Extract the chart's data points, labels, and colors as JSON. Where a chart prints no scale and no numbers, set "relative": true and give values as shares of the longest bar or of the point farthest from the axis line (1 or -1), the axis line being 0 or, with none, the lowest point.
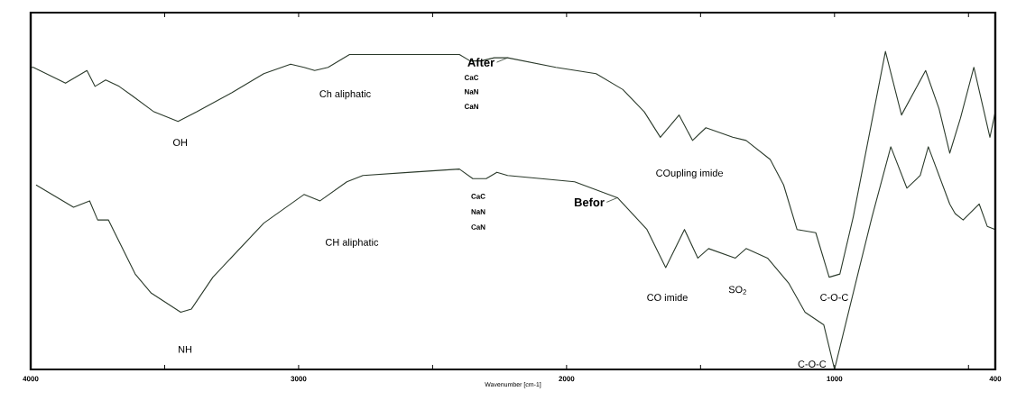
{
  "chart_data": {
    "type": "line",
    "relative": true,
    "xlabel": "Wavenumber [cm-1]",
    "xlim": [
      4000,
      400
    ],
    "xticks": [
      4000,
      {
        "value": 3500,
        "label": null
      },
      3000,
      {
        "value": 2500,
        "label": null
      },
      2000,
      {
        "value": 1500,
        "label": null
      },
      1000,
      {
        "value": 500,
        "label": null
      },
      400
    ],
    "tick_labels": "x",
    "legend": "top",
    "series": [
      {
        "name": "After",
        "color": "#2b3a2b",
        "x": [
          4000,
          3990,
          3870,
          3790,
          3760,
          3720,
          3670,
          3620,
          3540,
          3450,
          3380,
          3250,
          3130,
          3030,
          2980,
          2940,
          2890,
          2810,
          2580,
          2400,
          2360,
          2320,
          2270,
          2220,
          2040,
          1890,
          1790,
          1710,
          1650,
          1580,
          1530,
          1480,
          1380,
          1330,
          1240,
          1190,
          1140,
          1070,
          1020,
          980,
          930,
          810,
          750,
          660,
          610,
          570,
          530,
          480,
          420,
          400
        ],
        "values": [
          0.95,
          0.95,
          0.9,
          0.94,
          0.89,
          0.91,
          0.89,
          0.86,
          0.81,
          0.78,
          0.81,
          0.87,
          0.93,
          0.96,
          0.95,
          0.94,
          0.95,
          0.99,
          0.99,
          0.99,
          0.97,
          0.97,
          0.98,
          0.98,
          0.95,
          0.93,
          0.88,
          0.81,
          0.73,
          0.8,
          0.72,
          0.76,
          0.73,
          0.72,
          0.66,
          0.58,
          0.44,
          0.43,
          0.29,
          0.3,
          0.48,
          1.0,
          0.8,
          0.94,
          0.82,
          0.68,
          0.79,
          0.95,
          0.73,
          0.81
        ]
      },
      {
        "name": "Befor",
        "color": "#2b3a2b",
        "x": [
          3980,
          3840,
          3780,
          3750,
          3710,
          3610,
          3550,
          3440,
          3400,
          3320,
          3130,
          2980,
          2920,
          2820,
          2760,
          2580,
          2400,
          2350,
          2300,
          2260,
          2220,
          1970,
          1810,
          1700,
          1630,
          1560,
          1510,
          1470,
          1370,
          1330,
          1250,
          1170,
          1110,
          1040,
          1000,
          910,
          860,
          790,
          730,
          680,
          650,
          570,
          550,
          520,
          460,
          430,
          400
        ],
        "values": [
          0.58,
          0.51,
          0.53,
          0.47,
          0.47,
          0.3,
          0.24,
          0.18,
          0.19,
          0.29,
          0.46,
          0.55,
          0.53,
          0.59,
          0.61,
          0.62,
          0.63,
          0.6,
          0.6,
          0.62,
          0.61,
          0.59,
          0.54,
          0.44,
          0.32,
          0.44,
          0.35,
          0.38,
          0.35,
          0.38,
          0.35,
          0.27,
          0.18,
          0.14,
          0.0,
          0.31,
          0.48,
          0.7,
          0.57,
          0.61,
          0.7,
          0.52,
          0.49,
          0.47,
          0.52,
          0.45,
          0.44
        ]
      }
    ],
    "annotations": [
      "OH",
      "Ch aliphatic",
      "CaC",
      "NaN",
      "CaN",
      "COupling imide",
      "NH",
      "CH aliphatic",
      "CaC",
      "NaN",
      "CaN",
      "CO imide",
      "SO$_{2}$",
      "C-O-C",
      "C-O-C"
    ]
  }
}
